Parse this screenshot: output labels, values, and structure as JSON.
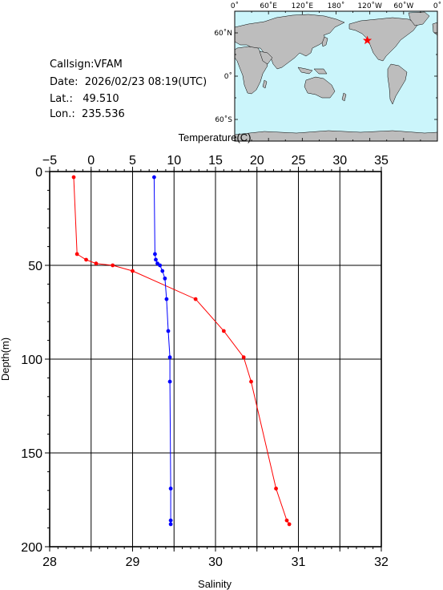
{
  "info": {
    "callsign": "Callsign:VFAM",
    "date": "Date:  2026/02/23 08:19(UTC)",
    "lat": "Lat.:   49.510",
    "lon": "Lon.:  235.536"
  },
  "map": {
    "lon_labels": [
      "0˚",
      "60˚E",
      "120˚E",
      "180˚",
      "120˚W",
      "60˚W",
      "0˚"
    ],
    "lat_labels": [
      "60˚N",
      "0˚",
      "60˚S"
    ],
    "colors": {
      "ocean": "#cbf5fb",
      "land": "#bdbdbd",
      "station": "#ff0000"
    },
    "station": {
      "lon": 235.536,
      "lat": 49.51
    }
  },
  "chart_data": {
    "type": "line",
    "ylabel": "Depth(m)",
    "ylim": [
      0,
      200
    ],
    "y_reversed": true,
    "y_ticks": [
      "0",
      "50",
      "100",
      "150",
      "200"
    ],
    "top_axis": {
      "label": "Temperature(C)",
      "range": [
        -5,
        35
      ],
      "ticks": [
        "−5",
        "0",
        "5",
        "10",
        "15",
        "20",
        "25",
        "30",
        "35"
      ]
    },
    "bottom_axis": {
      "label": "Salinity",
      "range": [
        28,
        32
      ],
      "ticks": [
        "28",
        "29",
        "30",
        "31",
        "32"
      ]
    },
    "grid": true,
    "series": [
      {
        "axis": "salinity",
        "color": "#ff0000",
        "points": [
          [
            28.29,
            3
          ],
          [
            28.33,
            44
          ],
          [
            28.44,
            47
          ],
          [
            28.56,
            49
          ],
          [
            28.76,
            50
          ],
          [
            29.0,
            53
          ],
          [
            29.76,
            68
          ],
          [
            30.1,
            85
          ],
          [
            30.34,
            99
          ],
          [
            30.43,
            112
          ],
          [
            30.73,
            169
          ],
          [
            30.86,
            186
          ],
          [
            30.89,
            188
          ]
        ]
      },
      {
        "axis": "temperature",
        "color": "#0000ff",
        "points": [
          [
            7.6,
            3
          ],
          [
            7.7,
            44
          ],
          [
            7.8,
            47
          ],
          [
            8.0,
            49
          ],
          [
            8.3,
            50
          ],
          [
            8.6,
            53
          ],
          [
            8.9,
            57
          ],
          [
            9.1,
            68
          ],
          [
            9.3,
            85
          ],
          [
            9.5,
            99
          ],
          [
            9.5,
            112
          ],
          [
            9.6,
            169
          ],
          [
            9.6,
            186
          ],
          [
            9.6,
            188
          ]
        ]
      }
    ]
  }
}
